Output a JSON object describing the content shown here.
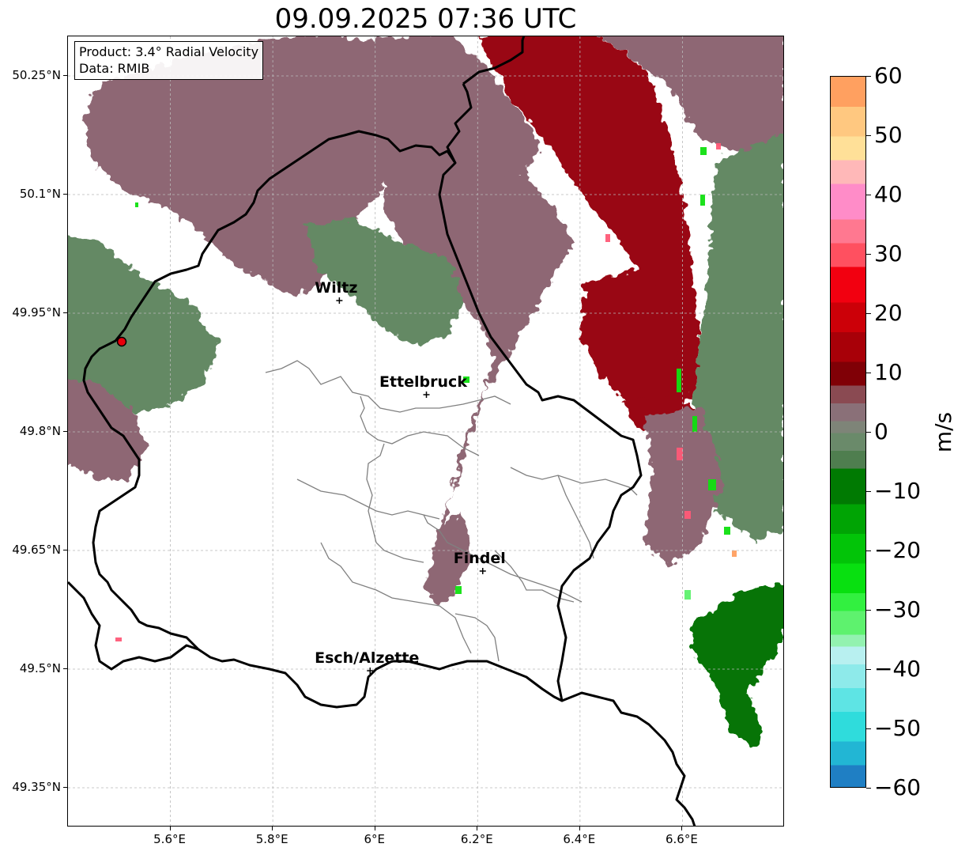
{
  "title": "09.09.2025 07:36 UTC",
  "info": {
    "product": "Product: 3.4° Radial Velocity",
    "data_source": "Data: RMIB"
  },
  "axes": {
    "lat_ticks": [
      {
        "value": 50.25,
        "label": "50.25°N"
      },
      {
        "value": 50.1,
        "label": "50.1°N"
      },
      {
        "value": 49.95,
        "label": "49.95°N"
      },
      {
        "value": 49.8,
        "label": "49.8°N"
      },
      {
        "value": 49.65,
        "label": "49.65°N"
      },
      {
        "value": 49.5,
        "label": "49.5°N"
      },
      {
        "value": 49.35,
        "label": "49.35°N"
      }
    ],
    "lon_ticks": [
      {
        "value": 5.6,
        "label": "5.6°E"
      },
      {
        "value": 5.8,
        "label": "5.8°E"
      },
      {
        "value": 6.0,
        "label": "6°E"
      },
      {
        "value": 6.2,
        "label": "6.2°E"
      },
      {
        "value": 6.4,
        "label": "6.4°E"
      },
      {
        "value": 6.6,
        "label": "6.6°E"
      }
    ],
    "lon_range": [
      5.4,
      6.8
    ],
    "lat_range": [
      49.3,
      50.3
    ]
  },
  "cities": [
    {
      "name": "Wiltz",
      "lon": 5.93,
      "lat": 49.966
    },
    {
      "name": "Ettelbruck",
      "lon": 6.1,
      "lat": 49.847
    },
    {
      "name": "Findel",
      "lon": 6.21,
      "lat": 49.624
    },
    {
      "name": "Esch/Alzette",
      "lon": 5.99,
      "lat": 49.498
    }
  ],
  "radar_site": {
    "lon": 5.505,
    "lat": 49.914,
    "color": "#e8000b"
  },
  "colorbar": {
    "unit": "m/s",
    "min": -60,
    "max": 60,
    "tick_labels": [
      {
        "value": 60,
        "label": "60"
      },
      {
        "value": 50,
        "label": "50"
      },
      {
        "value": 40,
        "label": "40"
      },
      {
        "value": 30,
        "label": "30"
      },
      {
        "value": 20,
        "label": "20"
      },
      {
        "value": 10,
        "label": "10"
      },
      {
        "value": 0,
        "label": "0"
      },
      {
        "value": -10,
        "label": "−10"
      },
      {
        "value": -20,
        "label": "−20"
      },
      {
        "value": -30,
        "label": "−30"
      },
      {
        "value": -40,
        "label": "−40"
      },
      {
        "value": -50,
        "label": "−50"
      },
      {
        "value": -60,
        "label": "−60"
      }
    ],
    "stops": [
      {
        "from": -60,
        "to": -56,
        "color": "#1f7fc4"
      },
      {
        "from": -56,
        "to": -52,
        "color": "#22b6d4"
      },
      {
        "from": -52,
        "to": -47,
        "color": "#2fdcdc"
      },
      {
        "from": -47,
        "to": -43,
        "color": "#5ee4e4"
      },
      {
        "from": -43,
        "to": -39,
        "color": "#8eeaea"
      },
      {
        "from": -39,
        "to": -36,
        "color": "#b8f0f0"
      },
      {
        "from": -36,
        "to": -34,
        "color": "#93f2b0"
      },
      {
        "from": -34,
        "to": -30,
        "color": "#5ef26e"
      },
      {
        "from": -30,
        "to": -27,
        "color": "#32f040"
      },
      {
        "from": -27,
        "to": -22,
        "color": "#08e010"
      },
      {
        "from": -22,
        "to": -17,
        "color": "#02c408"
      },
      {
        "from": -17,
        "to": -12,
        "color": "#00a404"
      },
      {
        "from": -12,
        "to": -6,
        "color": "#007a02"
      },
      {
        "from": -6,
        "to": -3,
        "color": "#4f7e4f"
      },
      {
        "from": -3,
        "to": 0,
        "color": "#6a8a6a"
      },
      {
        "from": 0,
        "to": 2,
        "color": "#7e8478"
      },
      {
        "from": 2,
        "to": 5,
        "color": "#8a7078"
      },
      {
        "from": 5,
        "to": 8,
        "color": "#8a4a52"
      },
      {
        "from": 8,
        "to": 12,
        "color": "#800006"
      },
      {
        "from": 12,
        "to": 17,
        "color": "#a80008"
      },
      {
        "from": 17,
        "to": 22,
        "color": "#cc0008"
      },
      {
        "from": 22,
        "to": 28,
        "color": "#f20010"
      },
      {
        "from": 28,
        "to": 32,
        "color": "#ff5060"
      },
      {
        "from": 32,
        "to": 36,
        "color": "#ff7890"
      },
      {
        "from": 36,
        "to": 42,
        "color": "#ff8cc8"
      },
      {
        "from": 42,
        "to": 46,
        "color": "#ffb8b8"
      },
      {
        "from": 46,
        "to": 50,
        "color": "#ffe098"
      },
      {
        "from": 50,
        "to": 55,
        "color": "#ffc880"
      },
      {
        "from": 55,
        "to": 60,
        "color": "#ffa060"
      }
    ]
  },
  "velocity_colors": {
    "muted_red": "#8b6470",
    "deep_red": "#960008",
    "muted_green": "#5e8660",
    "dark_green": "#007000",
    "bright_green": "#10e010",
    "pink": "#ff5a78"
  }
}
